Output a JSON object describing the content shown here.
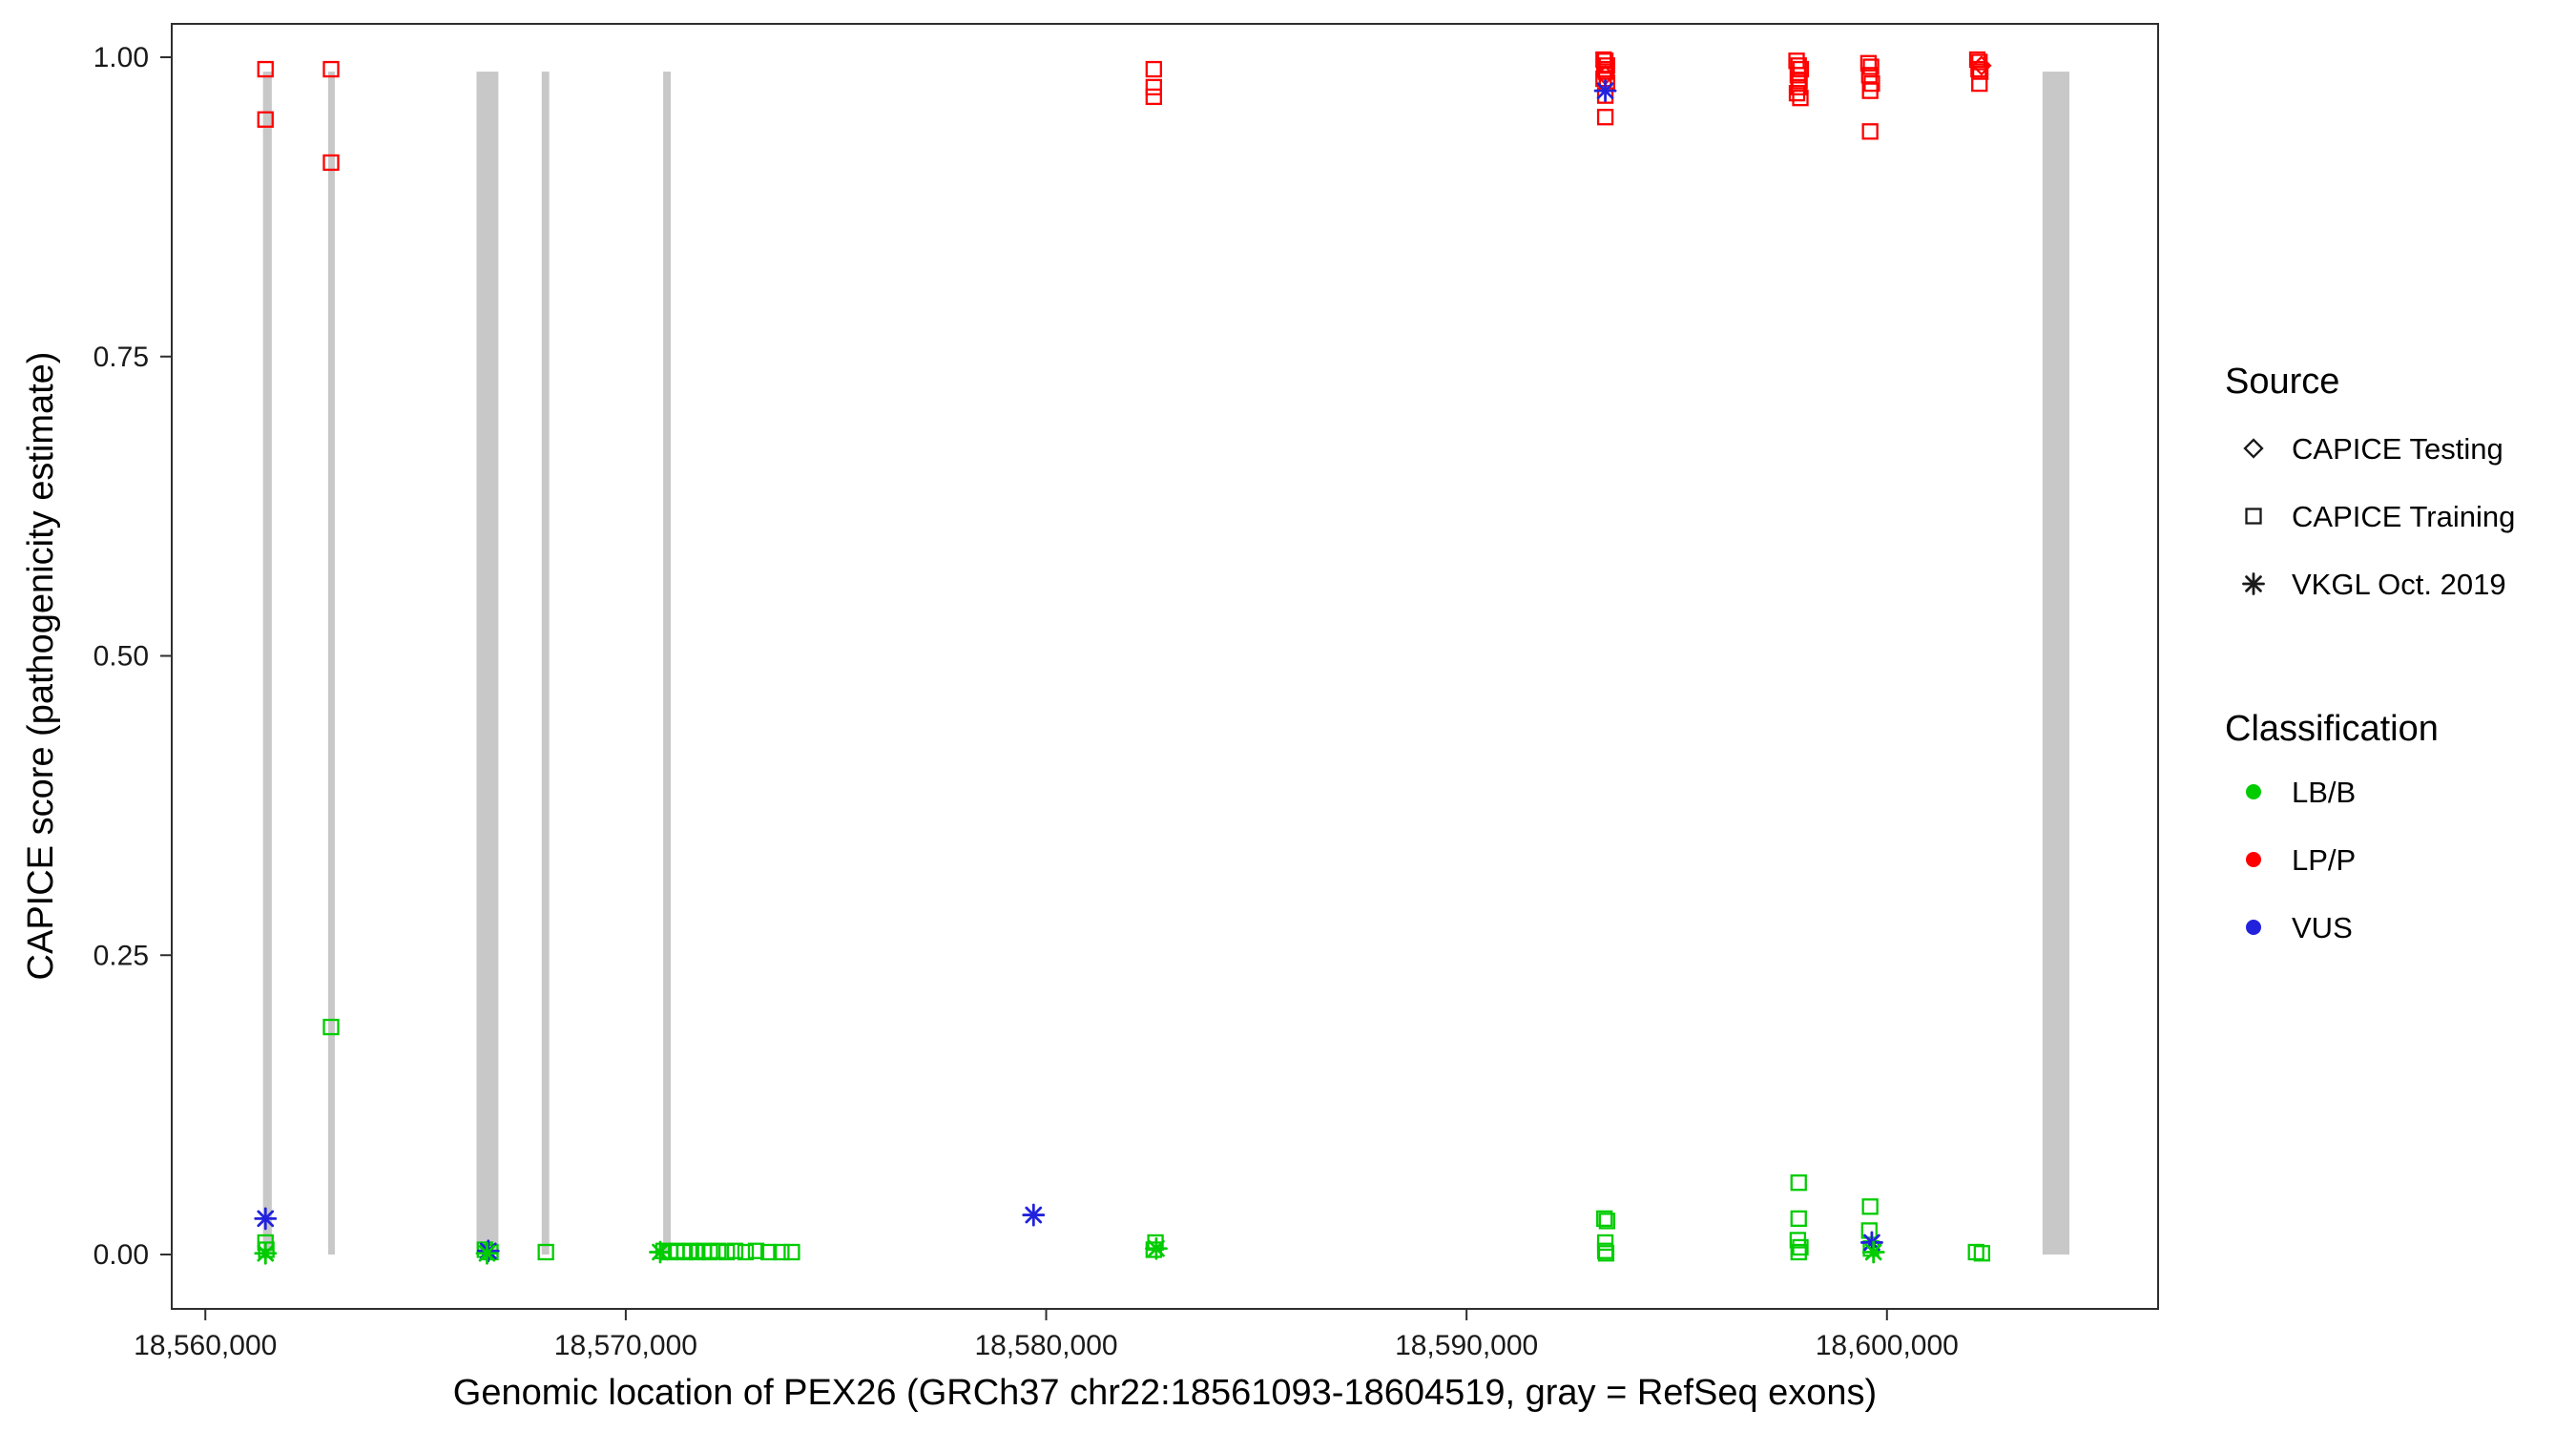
{
  "chart_data": {
    "type": "scatter",
    "title": "",
    "xlabel": "Genomic location of PEX26 (GRCh37 chr22:18561093-18604519, gray = RefSeq exons)",
    "ylabel": "CAPICE score (pathogenicity estimate)",
    "xlim": [
      18559200,
      18606450
    ],
    "ylim": [
      0,
      1.0
    ],
    "x_ticks": [
      18560000,
      18570000,
      18580000,
      18590000,
      18600000
    ],
    "x_tick_labels": [
      "18,560,000",
      "18,570,000",
      "18,580,000",
      "18,590,000",
      "18,600,000"
    ],
    "y_ticks": [
      0,
      0.25,
      0.5,
      0.75,
      1
    ],
    "y_tick_labels": [
      "0.00",
      "0.25",
      "0.50",
      "0.75",
      "1.00"
    ],
    "grid": false,
    "legend_position": "right",
    "exon_color": "#C8C8C8",
    "exon_note": "gray = RefSeq exons",
    "exons": [
      [
        18561370,
        18561580
      ],
      [
        18562920,
        18563080
      ],
      [
        18566450,
        18566970
      ],
      [
        18568000,
        18568180
      ],
      [
        18570890,
        18571070
      ],
      [
        18603700,
        18604340
      ]
    ],
    "classes": {
      "LB/B": "#00CC00",
      "LP/P": "#FF0000",
      "VUS": "#2222DD"
    },
    "shapes": {
      "CAPICE Testing": "diamond",
      "CAPICE Training": "square",
      "VKGL Oct. 2019": "asterisk"
    },
    "points_format": [
      "genomic_position",
      "capice_score",
      "classification",
      "shape"
    ],
    "points": [
      [
        18561430,
        0.99,
        "LP/P",
        "square"
      ],
      [
        18561430,
        0.948,
        "LP/P",
        "square"
      ],
      [
        18561430,
        0.01,
        "LB/B",
        "square"
      ],
      [
        18561450,
        0.004,
        "LB/B",
        "square"
      ],
      [
        18561430,
        0.03,
        "VUS",
        "asterisk"
      ],
      [
        18561430,
        0.001,
        "LB/B",
        "asterisk"
      ],
      [
        18562990,
        0.99,
        "LP/P",
        "square"
      ],
      [
        18562990,
        0.912,
        "LP/P",
        "square"
      ],
      [
        18562990,
        0.19,
        "LB/B",
        "square"
      ],
      [
        18566650,
        0.004,
        "LB/B",
        "square"
      ],
      [
        18566780,
        0.002,
        "LB/B",
        "square"
      ],
      [
        18566730,
        0.003,
        "VUS",
        "asterisk"
      ],
      [
        18566700,
        0.001,
        "LB/B",
        "asterisk"
      ],
      [
        18568100,
        0.002,
        "LB/B",
        "square"
      ],
      [
        18570900,
        0.003,
        "LB/B",
        "square"
      ],
      [
        18570820,
        0.002,
        "LB/B",
        "asterisk"
      ],
      [
        18571050,
        0.002,
        "LB/B",
        "square"
      ],
      [
        18571200,
        0.003,
        "LB/B",
        "square"
      ],
      [
        18571400,
        0.002,
        "LB/B",
        "square"
      ],
      [
        18571550,
        0.003,
        "LB/B",
        "square"
      ],
      [
        18571700,
        0.002,
        "LB/B",
        "square"
      ],
      [
        18571850,
        0.003,
        "LB/B",
        "square"
      ],
      [
        18572000,
        0.002,
        "LB/B",
        "square"
      ],
      [
        18572200,
        0.003,
        "LB/B",
        "square"
      ],
      [
        18572400,
        0.002,
        "LB/B",
        "square"
      ],
      [
        18572600,
        0.003,
        "LB/B",
        "square"
      ],
      [
        18572850,
        0.002,
        "LB/B",
        "square"
      ],
      [
        18573100,
        0.003,
        "LB/B",
        "square"
      ],
      [
        18573400,
        0.002,
        "LB/B",
        "square"
      ],
      [
        18573700,
        0.002,
        "LB/B",
        "square"
      ],
      [
        18573950,
        0.002,
        "LB/B",
        "square"
      ],
      [
        18579700,
        0.033,
        "VUS",
        "asterisk"
      ],
      [
        18582560,
        0.99,
        "LP/P",
        "square"
      ],
      [
        18582560,
        0.975,
        "LP/P",
        "square"
      ],
      [
        18582560,
        0.967,
        "LP/P",
        "square"
      ],
      [
        18582600,
        0.01,
        "LB/B",
        "square"
      ],
      [
        18582560,
        0.004,
        "LB/B",
        "square"
      ],
      [
        18582620,
        0.005,
        "LB/B",
        "asterisk"
      ],
      [
        18593260,
        0.998,
        "LP/P",
        "square"
      ],
      [
        18593300,
        0.997,
        "LP/P",
        "square"
      ],
      [
        18593340,
        0.993,
        "LP/P",
        "square"
      ],
      [
        18593280,
        0.99,
        "LP/P",
        "square"
      ],
      [
        18593320,
        0.988,
        "LP/P",
        "square"
      ],
      [
        18593300,
        0.985,
        "LP/P",
        "diamond"
      ],
      [
        18593260,
        0.982,
        "LP/P",
        "square"
      ],
      [
        18593340,
        0.978,
        "LP/P",
        "square"
      ],
      [
        18593300,
        0.968,
        "LP/P",
        "square"
      ],
      [
        18593300,
        0.972,
        "VUS",
        "asterisk"
      ],
      [
        18593300,
        0.95,
        "LP/P",
        "square"
      ],
      [
        18593280,
        0.03,
        "LB/B",
        "square"
      ],
      [
        18593340,
        0.028,
        "LB/B",
        "square"
      ],
      [
        18593300,
        0.01,
        "LB/B",
        "square"
      ],
      [
        18593300,
        0.003,
        "LB/B",
        "square"
      ],
      [
        18593320,
        0.001,
        "LB/B",
        "square"
      ],
      [
        18597850,
        0.997,
        "LP/P",
        "square"
      ],
      [
        18597900,
        0.993,
        "LP/P",
        "square"
      ],
      [
        18597950,
        0.99,
        "LP/P",
        "square"
      ],
      [
        18597880,
        0.985,
        "LP/P",
        "square"
      ],
      [
        18597920,
        0.98,
        "LP/P",
        "square"
      ],
      [
        18597900,
        0.975,
        "LP/P",
        "square"
      ],
      [
        18597860,
        0.97,
        "LP/P",
        "square"
      ],
      [
        18597940,
        0.966,
        "LP/P",
        "square"
      ],
      [
        18597900,
        0.06,
        "LB/B",
        "square"
      ],
      [
        18597900,
        0.03,
        "LB/B",
        "square"
      ],
      [
        18597880,
        0.012,
        "LB/B",
        "square"
      ],
      [
        18597940,
        0.006,
        "LB/B",
        "square"
      ],
      [
        18597900,
        0.002,
        "LB/B",
        "square"
      ],
      [
        18599560,
        0.995,
        "LP/P",
        "square"
      ],
      [
        18599620,
        0.992,
        "LP/P",
        "square"
      ],
      [
        18599580,
        0.985,
        "LP/P",
        "square"
      ],
      [
        18599640,
        0.978,
        "LP/P",
        "square"
      ],
      [
        18599600,
        0.972,
        "LP/P",
        "square"
      ],
      [
        18599600,
        0.938,
        "LP/P",
        "square"
      ],
      [
        18599600,
        0.04,
        "LB/B",
        "square"
      ],
      [
        18599580,
        0.02,
        "LB/B",
        "square"
      ],
      [
        18599620,
        0.005,
        "LB/B",
        "square"
      ],
      [
        18599640,
        0.01,
        "VUS",
        "asterisk"
      ],
      [
        18599680,
        0.002,
        "LB/B",
        "asterisk"
      ],
      [
        18602150,
        0.998,
        "LP/P",
        "square"
      ],
      [
        18602200,
        0.996,
        "LP/P",
        "square"
      ],
      [
        18602250,
        0.993,
        "LP/P",
        "diamond"
      ],
      [
        18602180,
        0.99,
        "LP/P",
        "square"
      ],
      [
        18602220,
        0.988,
        "LP/P",
        "square"
      ],
      [
        18602200,
        0.978,
        "LP/P",
        "square"
      ],
      [
        18602120,
        0.002,
        "LB/B",
        "square"
      ],
      [
        18602260,
        0.001,
        "LB/B",
        "square"
      ]
    ]
  },
  "legend": {
    "source_title": "Source",
    "source_items": [
      {
        "label": "CAPICE Testing",
        "shape": "diamond"
      },
      {
        "label": "CAPICE Training",
        "shape": "square"
      },
      {
        "label": "VKGL Oct. 2019",
        "shape": "asterisk"
      }
    ],
    "classification_title": "Classification",
    "classification_items": [
      {
        "label": "LB/B",
        "color": "#00CC00"
      },
      {
        "label": "LP/P",
        "color": "#FF0000"
      },
      {
        "label": "VUS",
        "color": "#2222DD"
      }
    ]
  }
}
